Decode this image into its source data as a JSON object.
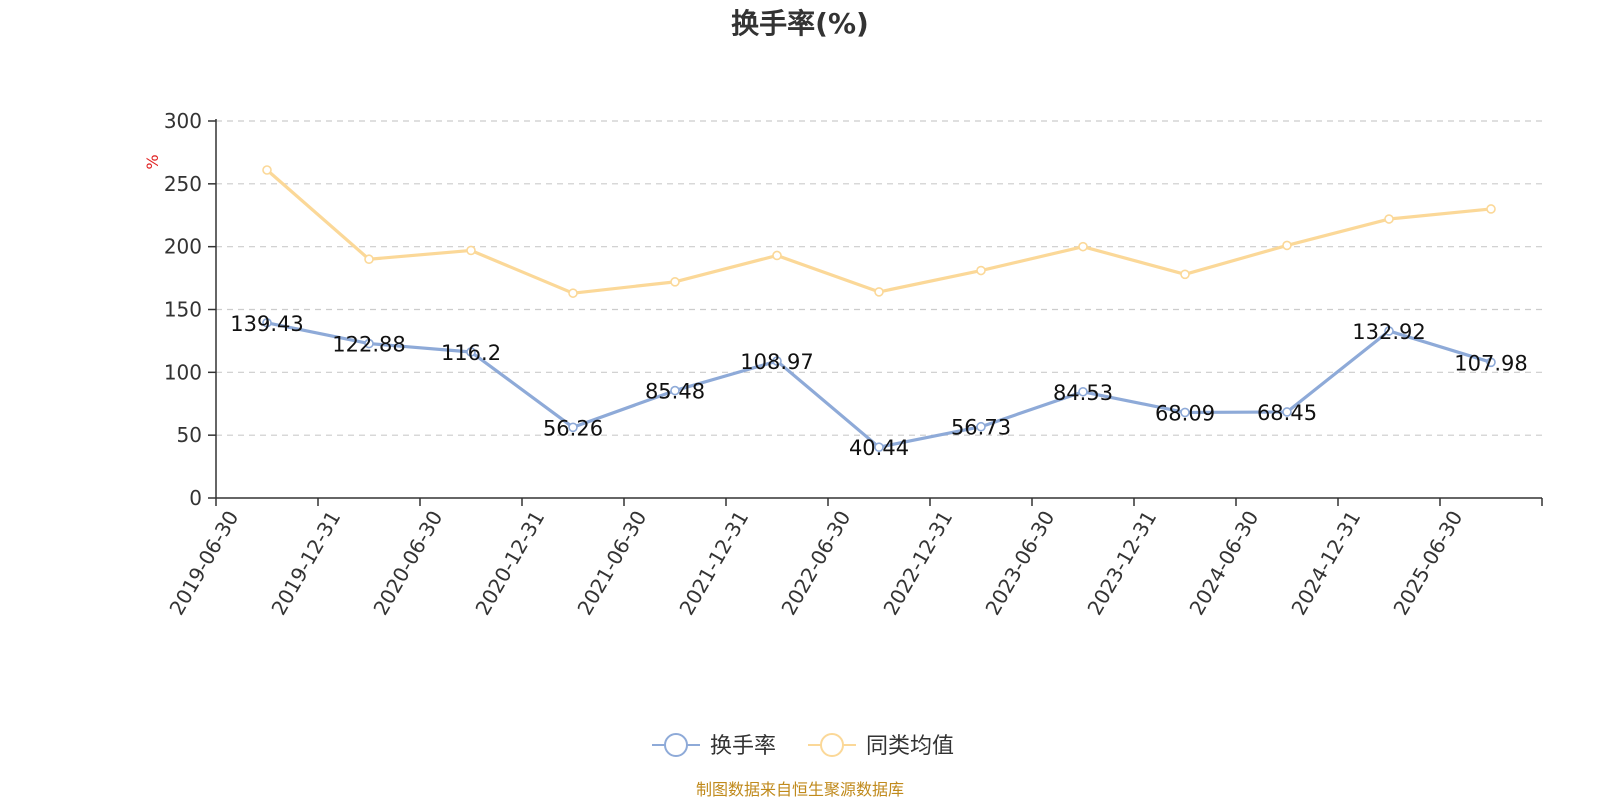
{
  "chart_data": {
    "type": "line",
    "title": "换手率(%)",
    "ylabel": "%",
    "ylim": [
      0,
      300
    ],
    "yticks": [
      0,
      50,
      100,
      150,
      200,
      250,
      300
    ],
    "grid": true,
    "legend_position": "bottom",
    "categories": [
      "2019-06-30",
      "2019-12-31",
      "2020-06-30",
      "2020-12-31",
      "2021-06-30",
      "2021-12-31",
      "2022-06-30",
      "2022-12-31",
      "2023-06-30",
      "2023-12-31",
      "2024-06-30",
      "2024-12-31",
      "2025-06-30"
    ],
    "series": [
      {
        "name": "换手率",
        "color": "#8eaad8",
        "values": [
          139.43,
          122.88,
          116.2,
          56.26,
          85.48,
          108.97,
          40.44,
          56.73,
          84.53,
          68.09,
          68.45,
          132.92,
          107.98
        ],
        "labels": [
          "139.43",
          "122.88",
          "116.2",
          "56.26",
          "85.48",
          "108.97",
          "40.44",
          "56.73",
          "84.53",
          "68.09",
          "68.45",
          "132.92",
          "107.98"
        ]
      },
      {
        "name": "同类均值",
        "color": "#fbd898",
        "values": [
          261,
          190,
          197,
          163,
          172,
          193,
          164,
          181,
          200,
          178,
          201,
          222,
          230
        ]
      }
    ]
  },
  "source_note": "制图数据来自恒生聚源数据库"
}
